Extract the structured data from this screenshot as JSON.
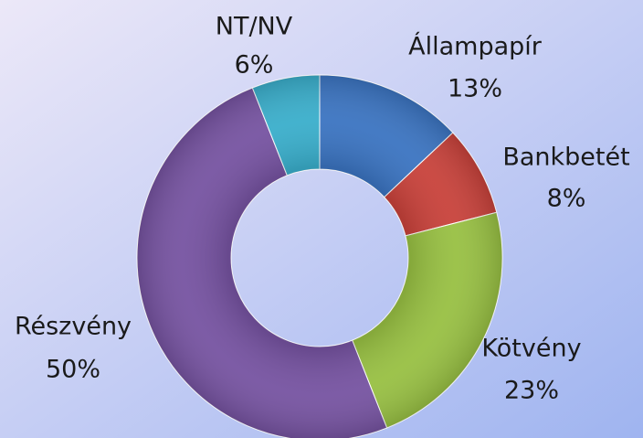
{
  "chart_data": {
    "type": "donut",
    "categories": [
      "Állampapír",
      "Bankbetét",
      "Kötvény",
      "Részvény",
      "NT/NV"
    ],
    "values": [
      13,
      8,
      23,
      50,
      6
    ],
    "value_labels": [
      "13%",
      "8%",
      "23%",
      "50%",
      "6%"
    ],
    "colors": [
      "#3b74c1",
      "#c8423b",
      "#98c043",
      "#7653a1",
      "#3aaecb"
    ]
  }
}
